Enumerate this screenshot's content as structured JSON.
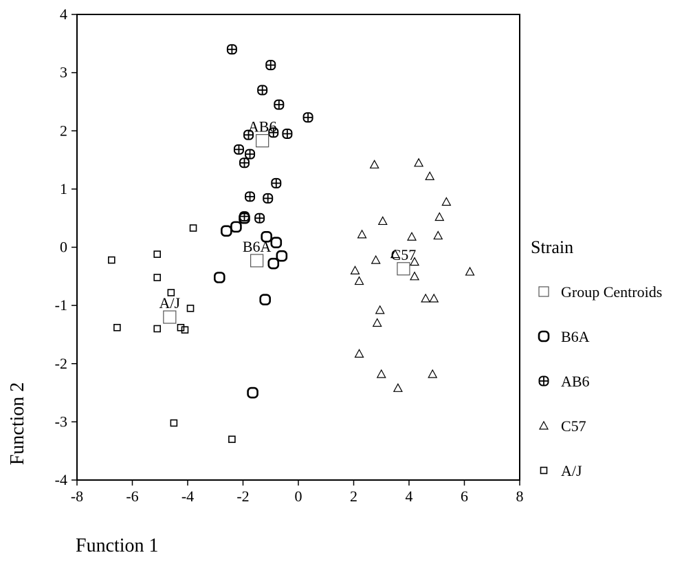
{
  "chart_data": {
    "type": "scatter",
    "xlabel": "Function 1",
    "ylabel": "Function 2",
    "xlim": [
      -8,
      8
    ],
    "ylim": [
      -4,
      4
    ],
    "xticks": [
      -8,
      -6,
      -4,
      -2,
      0,
      2,
      4,
      6,
      8
    ],
    "yticks": [
      -4,
      -3,
      -2,
      -1,
      0,
      1,
      2,
      3,
      4
    ],
    "grid": false,
    "legend": {
      "title": "Strain",
      "placement": "right",
      "entries": [
        {
          "label": "Group Centroids",
          "marker": "centroid"
        },
        {
          "label": "B6A",
          "marker": "rounded-square"
        },
        {
          "label": "AB6",
          "marker": "circle-plus"
        },
        {
          "label": "C57",
          "marker": "triangle"
        },
        {
          "label": "A/J",
          "marker": "small-square"
        }
      ]
    },
    "series": [
      {
        "name": "B6A",
        "marker": "rounded-square",
        "points": [
          [
            -2.6,
            0.28
          ],
          [
            -2.25,
            0.35
          ],
          [
            -1.95,
            0.5
          ],
          [
            -1.15,
            0.18
          ],
          [
            -0.8,
            0.08
          ],
          [
            -0.6,
            -0.15
          ],
          [
            -0.9,
            -0.28
          ],
          [
            -2.85,
            -0.52
          ],
          [
            -1.2,
            -0.9
          ],
          [
            -1.65,
            -2.5
          ]
        ]
      },
      {
        "name": "AB6",
        "marker": "circle-plus",
        "points": [
          [
            -2.4,
            3.4
          ],
          [
            -1.0,
            3.13
          ],
          [
            -1.3,
            2.7
          ],
          [
            -0.7,
            2.45
          ],
          [
            0.35,
            2.23
          ],
          [
            -1.8,
            1.93
          ],
          [
            -0.9,
            1.97
          ],
          [
            -0.4,
            1.95
          ],
          [
            -2.15,
            1.68
          ],
          [
            -1.75,
            1.6
          ],
          [
            -1.95,
            1.45
          ],
          [
            -0.8,
            1.1
          ],
          [
            -1.75,
            0.87
          ],
          [
            -1.1,
            0.84
          ],
          [
            -1.4,
            0.5
          ],
          [
            -1.95,
            0.53
          ]
        ]
      },
      {
        "name": "C57",
        "marker": "triangle",
        "points": [
          [
            2.75,
            1.42
          ],
          [
            4.35,
            1.45
          ],
          [
            4.75,
            1.22
          ],
          [
            5.35,
            0.78
          ],
          [
            5.1,
            0.52
          ],
          [
            3.05,
            0.45
          ],
          [
            4.1,
            0.18
          ],
          [
            5.05,
            0.2
          ],
          [
            2.3,
            0.22
          ],
          [
            3.5,
            -0.12
          ],
          [
            4.2,
            -0.25
          ],
          [
            2.8,
            -0.22
          ],
          [
            2.05,
            -0.4
          ],
          [
            2.2,
            -0.58
          ],
          [
            6.2,
            -0.42
          ],
          [
            4.2,
            -0.5
          ],
          [
            4.6,
            -0.88
          ],
          [
            4.9,
            -0.88
          ],
          [
            2.95,
            -1.08
          ],
          [
            2.85,
            -1.3
          ],
          [
            2.2,
            -1.83
          ],
          [
            3.0,
            -2.18
          ],
          [
            4.85,
            -2.18
          ],
          [
            3.6,
            -2.42
          ]
        ]
      },
      {
        "name": "A/J",
        "marker": "small-square",
        "points": [
          [
            -6.75,
            -0.22
          ],
          [
            -5.1,
            -0.12
          ],
          [
            -5.1,
            -0.52
          ],
          [
            -3.8,
            0.33
          ],
          [
            -4.6,
            -0.78
          ],
          [
            -3.9,
            -1.05
          ],
          [
            -6.55,
            -1.38
          ],
          [
            -5.1,
            -1.4
          ],
          [
            -4.25,
            -1.38
          ],
          [
            -4.1,
            -1.42
          ],
          [
            -4.5,
            -3.02
          ],
          [
            -2.4,
            -3.3
          ]
        ]
      }
    ],
    "centroids": [
      {
        "label": "AB6",
        "x": -1.3,
        "y": 1.83
      },
      {
        "label": "B6A",
        "x": -1.5,
        "y": -0.23
      },
      {
        "label": "C57",
        "x": 3.8,
        "y": -0.37
      },
      {
        "label": "A/J",
        "x": -4.65,
        "y": -1.2
      }
    ]
  }
}
